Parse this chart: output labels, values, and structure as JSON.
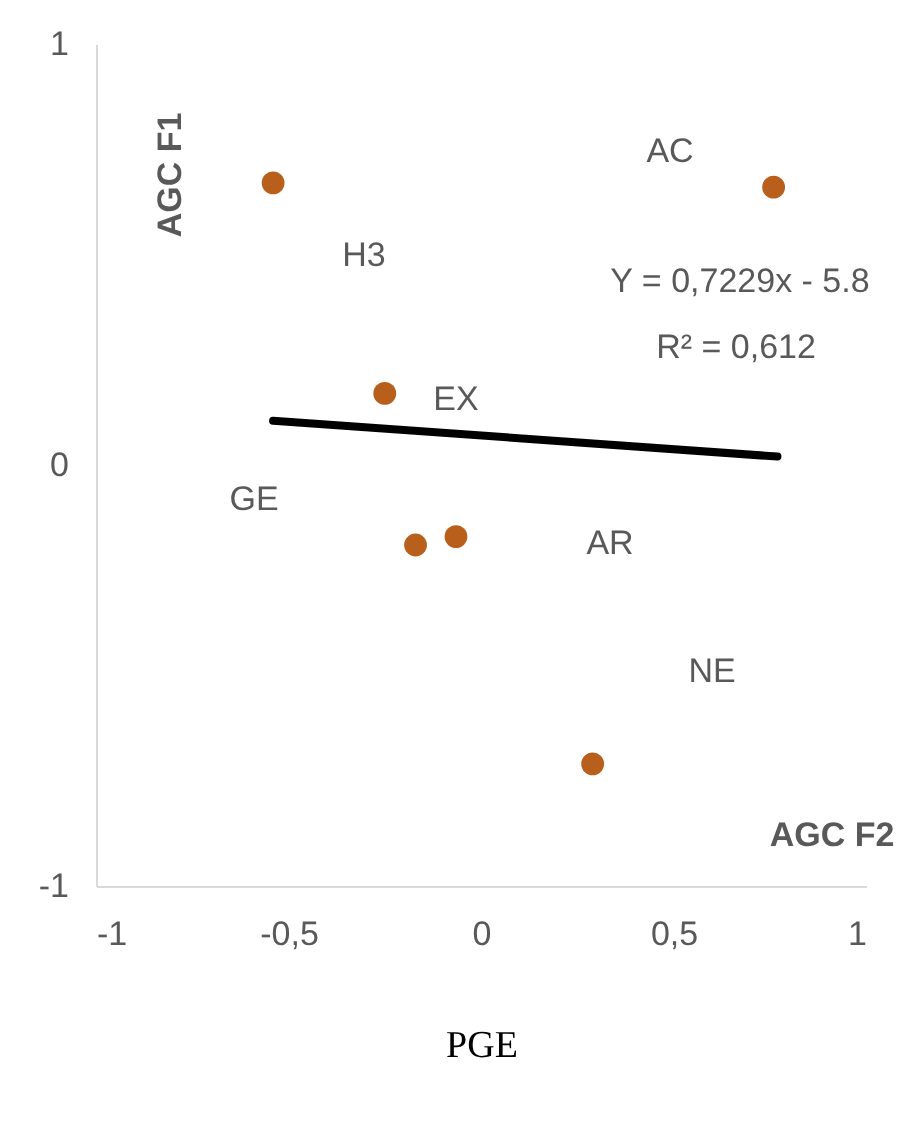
{
  "chart_data": {
    "type": "scatter",
    "xlabel": "PGE",
    "ylabel": "AGC F1",
    "series": [
      {
        "color": "#b85f1c",
        "marker": "circle",
        "x": [
          -0.54,
          0.76,
          -0.25,
          -0.17,
          -0.065,
          0.29
        ],
        "values": [
          0.67,
          0.66,
          0.17,
          -0.19,
          -0.17,
          -0.71
        ]
      },
      {
        "type": "line",
        "color": "#000000",
        "x": [
          -0.54,
          0.77
        ],
        "values": [
          0.105,
          0.02
        ]
      }
    ],
    "annotations": [
      "AC",
      "H3",
      "EX",
      "GE",
      "AR",
      "NE",
      "Y = 0,7229x - 5.8",
      "R² = 0,612",
      "AGC F2"
    ],
    "xlim": [
      -1,
      1
    ],
    "ylim": [
      -1,
      1
    ],
    "xticks": [
      -1,
      {
        "value": -0.5,
        "label": "-0,5"
      },
      0,
      {
        "value": 0.5,
        "label": "0,5"
      },
      1
    ],
    "yticks": [
      -1,
      0,
      1
    ],
    "grid": false
  }
}
